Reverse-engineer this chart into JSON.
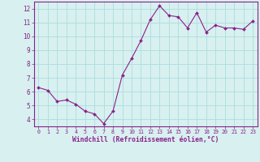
{
  "x": [
    0,
    1,
    2,
    3,
    4,
    5,
    6,
    7,
    8,
    9,
    10,
    11,
    12,
    13,
    14,
    15,
    16,
    17,
    18,
    19,
    20,
    21,
    22,
    23
  ],
  "y": [
    6.3,
    6.1,
    5.3,
    5.4,
    5.1,
    4.6,
    4.4,
    3.7,
    4.6,
    7.2,
    8.4,
    9.7,
    11.2,
    12.2,
    11.5,
    11.4,
    10.6,
    11.7,
    10.3,
    10.8,
    10.6,
    10.6,
    10.5,
    11.1
  ],
  "line_color": "#882288",
  "marker": "D",
  "marker_size": 2.0,
  "bg_color": "#d8f0f0",
  "grid_color": "#aadddd",
  "xlabel": "Windchill (Refroidissement éolien,°C)",
  "ylabel": "",
  "xlim": [
    -0.5,
    23.5
  ],
  "ylim": [
    3.5,
    12.5
  ],
  "yticks": [
    4,
    5,
    6,
    7,
    8,
    9,
    10,
    11,
    12
  ],
  "xticks": [
    0,
    1,
    2,
    3,
    4,
    5,
    6,
    7,
    8,
    9,
    10,
    11,
    12,
    13,
    14,
    15,
    16,
    17,
    18,
    19,
    20,
    21,
    22,
    23
  ],
  "tick_color": "#882288",
  "label_color": "#882288",
  "spine_color": "#882288"
}
